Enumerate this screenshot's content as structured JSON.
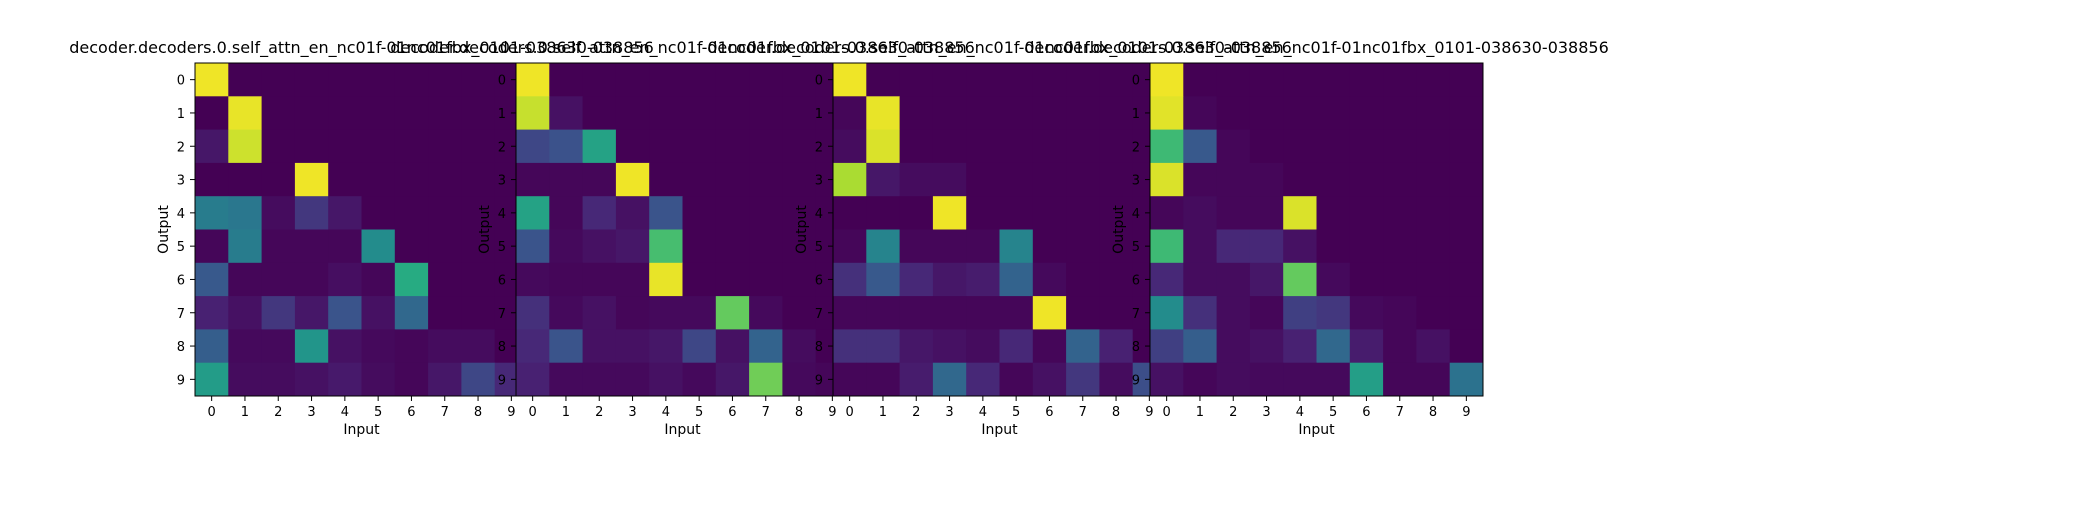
{
  "chart_data": [
    {
      "type": "heatmap",
      "title": "decoder.decoders.0.self_attn_en_nc01f-01nc01fbx_0101-038630-038856",
      "xlabel": "Input",
      "ylabel": "Output",
      "x_ticks": [
        "0",
        "1",
        "2",
        "3",
        "4",
        "5",
        "6",
        "7",
        "8",
        "9"
      ],
      "y_ticks": [
        "0",
        "1",
        "2",
        "3",
        "4",
        "5",
        "6",
        "7",
        "8",
        "9"
      ],
      "xlim": [
        -0.5,
        9.5
      ],
      "ylim": [
        9.5,
        -0.5
      ],
      "colormap": "viridis",
      "value_range": [
        0,
        1
      ],
      "z": [
        [
          0.98,
          0,
          0,
          0,
          0,
          0,
          0,
          0,
          0,
          0
        ],
        [
          0,
          0.97,
          0,
          0,
          0,
          0,
          0,
          0,
          0,
          0
        ],
        [
          0.08,
          0.93,
          0,
          0,
          0,
          0,
          0,
          0,
          0,
          0
        ],
        [
          0,
          0,
          0,
          0.98,
          0,
          0,
          0,
          0,
          0,
          0
        ],
        [
          0.42,
          0.4,
          0.04,
          0.18,
          0.08,
          0,
          0,
          0,
          0,
          0
        ],
        [
          0.02,
          0.42,
          0.02,
          0.02,
          0.02,
          0.48,
          0,
          0,
          0,
          0
        ],
        [
          0.28,
          0.02,
          0.02,
          0.02,
          0.05,
          0.02,
          0.62,
          0,
          0,
          0
        ],
        [
          0.12,
          0.06,
          0.18,
          0.08,
          0.26,
          0.06,
          0.34,
          0,
          0,
          0
        ],
        [
          0.3,
          0.03,
          0.03,
          0.52,
          0.06,
          0.03,
          0.02,
          0.04,
          0.04,
          0
        ],
        [
          0.55,
          0.04,
          0.04,
          0.06,
          0.09,
          0.04,
          0.02,
          0.08,
          0.22,
          0.14
        ]
      ]
    },
    {
      "type": "heatmap",
      "title": "decoder.decoders.0.self_attn_en_nc01f-01nc01fbx_0101-038630-038856",
      "xlabel": "Input",
      "ylabel": "Output",
      "x_ticks": [
        "0",
        "1",
        "2",
        "3",
        "4",
        "5",
        "6",
        "7",
        "8",
        "9"
      ],
      "y_ticks": [
        "0",
        "1",
        "2",
        "3",
        "4",
        "5",
        "6",
        "7",
        "8",
        "9"
      ],
      "xlim": [
        -0.5,
        9.5
      ],
      "ylim": [
        9.5,
        -0.5
      ],
      "colormap": "viridis",
      "value_range": [
        0,
        1
      ],
      "z": [
        [
          0.98,
          0,
          0,
          0,
          0,
          0,
          0,
          0,
          0,
          0
        ],
        [
          0.92,
          0.06,
          0,
          0,
          0,
          0,
          0,
          0,
          0,
          0
        ],
        [
          0.22,
          0.25,
          0.58,
          0,
          0,
          0,
          0,
          0,
          0,
          0
        ],
        [
          0.02,
          0.02,
          0.02,
          0.98,
          0,
          0,
          0,
          0,
          0,
          0
        ],
        [
          0.58,
          0.02,
          0.14,
          0.06,
          0.26,
          0,
          0,
          0,
          0,
          0
        ],
        [
          0.26,
          0.03,
          0.06,
          0.08,
          0.7,
          0,
          0,
          0,
          0,
          0
        ],
        [
          0.03,
          0.02,
          0.02,
          0.02,
          0.97,
          0,
          0,
          0,
          0,
          0
        ],
        [
          0.16,
          0.03,
          0.06,
          0.02,
          0.03,
          0.03,
          0.76,
          0.03,
          0,
          0
        ],
        [
          0.14,
          0.26,
          0.06,
          0.06,
          0.08,
          0.22,
          0.06,
          0.32,
          0.04,
          0
        ],
        [
          0.12,
          0.03,
          0.03,
          0.03,
          0.06,
          0.03,
          0.08,
          0.78,
          0.03,
          0.02
        ]
      ]
    },
    {
      "type": "heatmap",
      "title": "decoder.decoders.0.self_attn_en_nc01f-01nc01fbx_0101-038630-038856",
      "xlabel": "Input",
      "ylabel": "Output",
      "x_ticks": [
        "0",
        "1",
        "2",
        "3",
        "4",
        "5",
        "6",
        "7",
        "8",
        "9"
      ],
      "y_ticks": [
        "0",
        "1",
        "2",
        "3",
        "4",
        "5",
        "6",
        "7",
        "8",
        "9"
      ],
      "xlim": [
        -0.5,
        9.5
      ],
      "ylim": [
        9.5,
        -0.5
      ],
      "colormap": "viridis",
      "value_range": [
        0,
        1
      ],
      "z": [
        [
          0.98,
          0,
          0,
          0,
          0,
          0,
          0,
          0,
          0,
          0
        ],
        [
          0.02,
          0.97,
          0,
          0,
          0,
          0,
          0,
          0,
          0,
          0
        ],
        [
          0.04,
          0.95,
          0,
          0,
          0,
          0,
          0,
          0,
          0,
          0
        ],
        [
          0.88,
          0.08,
          0.04,
          0.04,
          0,
          0,
          0,
          0,
          0,
          0
        ],
        [
          0,
          0,
          0,
          0.98,
          0,
          0,
          0,
          0,
          0,
          0
        ],
        [
          0.02,
          0.45,
          0.02,
          0.02,
          0.02,
          0.45,
          0,
          0,
          0,
          0
        ],
        [
          0.16,
          0.28,
          0.14,
          0.08,
          0.1,
          0.32,
          0.03,
          0,
          0,
          0
        ],
        [
          0.02,
          0.02,
          0.02,
          0.02,
          0.02,
          0.02,
          0.98,
          0,
          0,
          0
        ],
        [
          0.16,
          0.16,
          0.08,
          0.06,
          0.04,
          0.14,
          0.02,
          0.32,
          0.12,
          0
        ],
        [
          0.02,
          0.02,
          0.1,
          0.34,
          0.14,
          0.02,
          0.06,
          0.18,
          0.04,
          0.24
        ]
      ]
    },
    {
      "type": "heatmap",
      "title": "decoder.decoders.0.self_attn_en_nc01f-01nc01fbx_0101-038630-038856",
      "xlabel": "Input",
      "ylabel": "Output",
      "x_ticks": [
        "0",
        "1",
        "2",
        "3",
        "4",
        "5",
        "6",
        "7",
        "8",
        "9"
      ],
      "y_ticks": [
        "0",
        "1",
        "2",
        "3",
        "4",
        "5",
        "6",
        "7",
        "8",
        "9"
      ],
      "xlim": [
        -0.5,
        9.5
      ],
      "ylim": [
        9.5,
        -0.5
      ],
      "colormap": "viridis",
      "value_range": [
        0,
        1
      ],
      "z": [
        [
          0.98,
          0,
          0,
          0,
          0,
          0,
          0,
          0,
          0,
          0
        ],
        [
          0.96,
          0.02,
          0,
          0,
          0,
          0,
          0,
          0,
          0,
          0
        ],
        [
          0.68,
          0.28,
          0.02,
          0,
          0,
          0,
          0,
          0,
          0,
          0
        ],
        [
          0.95,
          0.02,
          0.02,
          0.02,
          0,
          0,
          0,
          0,
          0,
          0
        ],
        [
          0.02,
          0.04,
          0.02,
          0.02,
          0.95,
          0,
          0,
          0,
          0,
          0
        ],
        [
          0.68,
          0.04,
          0.14,
          0.14,
          0.06,
          0,
          0,
          0,
          0,
          0
        ],
        [
          0.14,
          0.04,
          0.04,
          0.08,
          0.76,
          0.03,
          0,
          0,
          0,
          0
        ],
        [
          0.48,
          0.16,
          0.04,
          0.02,
          0.2,
          0.18,
          0.03,
          0.02,
          0,
          0
        ],
        [
          0.2,
          0.3,
          0.04,
          0.06,
          0.12,
          0.34,
          0.1,
          0.02,
          0.06,
          0
        ],
        [
          0.06,
          0.02,
          0.04,
          0.03,
          0.03,
          0.03,
          0.56,
          0.02,
          0.02,
          0.38
        ]
      ]
    }
  ]
}
